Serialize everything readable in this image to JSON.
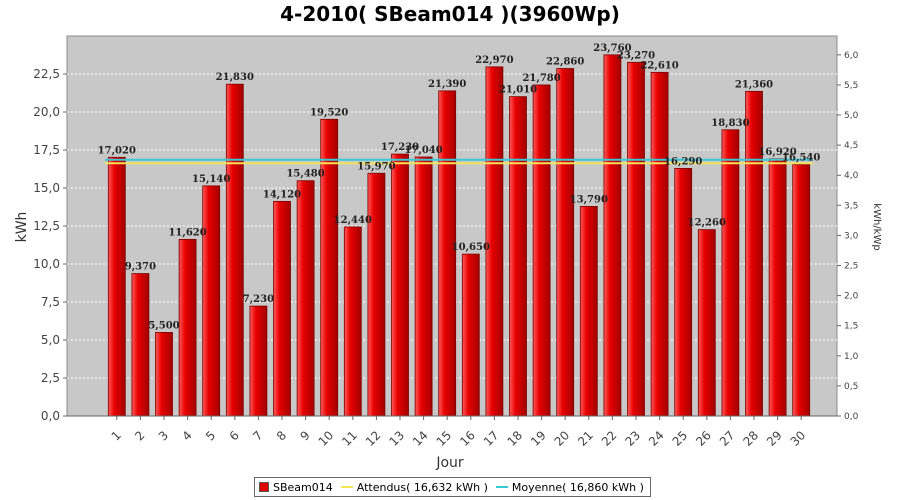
{
  "chart_data": {
    "type": "bar",
    "title": "4-2010( SBeam014 )(3960Wp)",
    "xlabel": "Jour",
    "ylabel": "kWh",
    "y2label": "kWh/kWp",
    "categories": [
      "1",
      "2",
      "3",
      "4",
      "5",
      "6",
      "7",
      "8",
      "9",
      "10",
      "11",
      "12",
      "13",
      "14",
      "15",
      "16",
      "17",
      "18",
      "19",
      "20",
      "21",
      "22",
      "23",
      "24",
      "25",
      "26",
      "27",
      "28",
      "29",
      "30"
    ],
    "series": [
      {
        "name": "SBeam014",
        "values": [
          17.02,
          9.37,
          5.5,
          11.62,
          15.14,
          21.83,
          7.23,
          14.12,
          15.48,
          19.52,
          12.44,
          15.97,
          17.23,
          17.04,
          21.39,
          10.65,
          22.97,
          21.01,
          21.78,
          22.86,
          13.79,
          23.76,
          23.27,
          22.61,
          16.29,
          12.26,
          18.83,
          21.36,
          16.92,
          16.54
        ],
        "labels": [
          "17,020",
          "9,370",
          "5,500",
          "11,620",
          "15,140",
          "21,830",
          "7,230",
          "14,120",
          "15,480",
          "19,520",
          "12,440",
          "15,970",
          "17,230",
          "17,040",
          "21,390",
          "10,650",
          "22,970",
          "21,010",
          "21,780",
          "22,860",
          "13,790",
          "23,760",
          "23,270",
          "22,610",
          "16,290",
          "12,260",
          "18,830",
          "21,360",
          "16,920",
          "16,540"
        ]
      }
    ],
    "reference_lines": [
      {
        "name": "Attendus( 16,632 kWh )",
        "value": 16.632,
        "color": "#f2e35a"
      },
      {
        "name": "Moyenne( 16,860 kWh )",
        "value": 16.86,
        "color": "#38c8d6"
      }
    ],
    "ylim": [
      0,
      25
    ],
    "yticks": [
      0,
      2.5,
      5,
      7.5,
      10,
      12.5,
      15,
      17.5,
      20,
      22.5
    ],
    "ytick_labels": [
      "0,0",
      "2,5",
      "5,0",
      "7,5",
      "10,0",
      "12,5",
      "15,0",
      "17,5",
      "20,0",
      "22,5"
    ],
    "y2lim": [
      0,
      6.313
    ],
    "y2ticks": [
      0,
      0.5,
      1,
      1.5,
      2,
      2.5,
      3,
      3.5,
      4,
      4.5,
      5,
      5.5,
      6
    ],
    "y2tick_labels": [
      "0,0",
      "0,5",
      "1,0",
      "1,5",
      "2,0",
      "2,5",
      "3,0",
      "3,5",
      "4,0",
      "4,5",
      "5,0",
      "5,5",
      "6,0"
    ],
    "grid": true,
    "legend_position": "bottom",
    "colors": {
      "bar": "#e00000",
      "plot_background": "#c8c8c8",
      "grid": "#ffffff"
    }
  },
  "legend": {
    "items": [
      {
        "label": "SBeam014",
        "kind": "bar",
        "color": "#e00000"
      },
      {
        "label": "Attendus( 16,632 kWh )",
        "kind": "line",
        "color": "#f2e35a"
      },
      {
        "label": "Moyenne( 16,860 kWh )",
        "kind": "line",
        "color": "#38c8d6"
      }
    ]
  }
}
